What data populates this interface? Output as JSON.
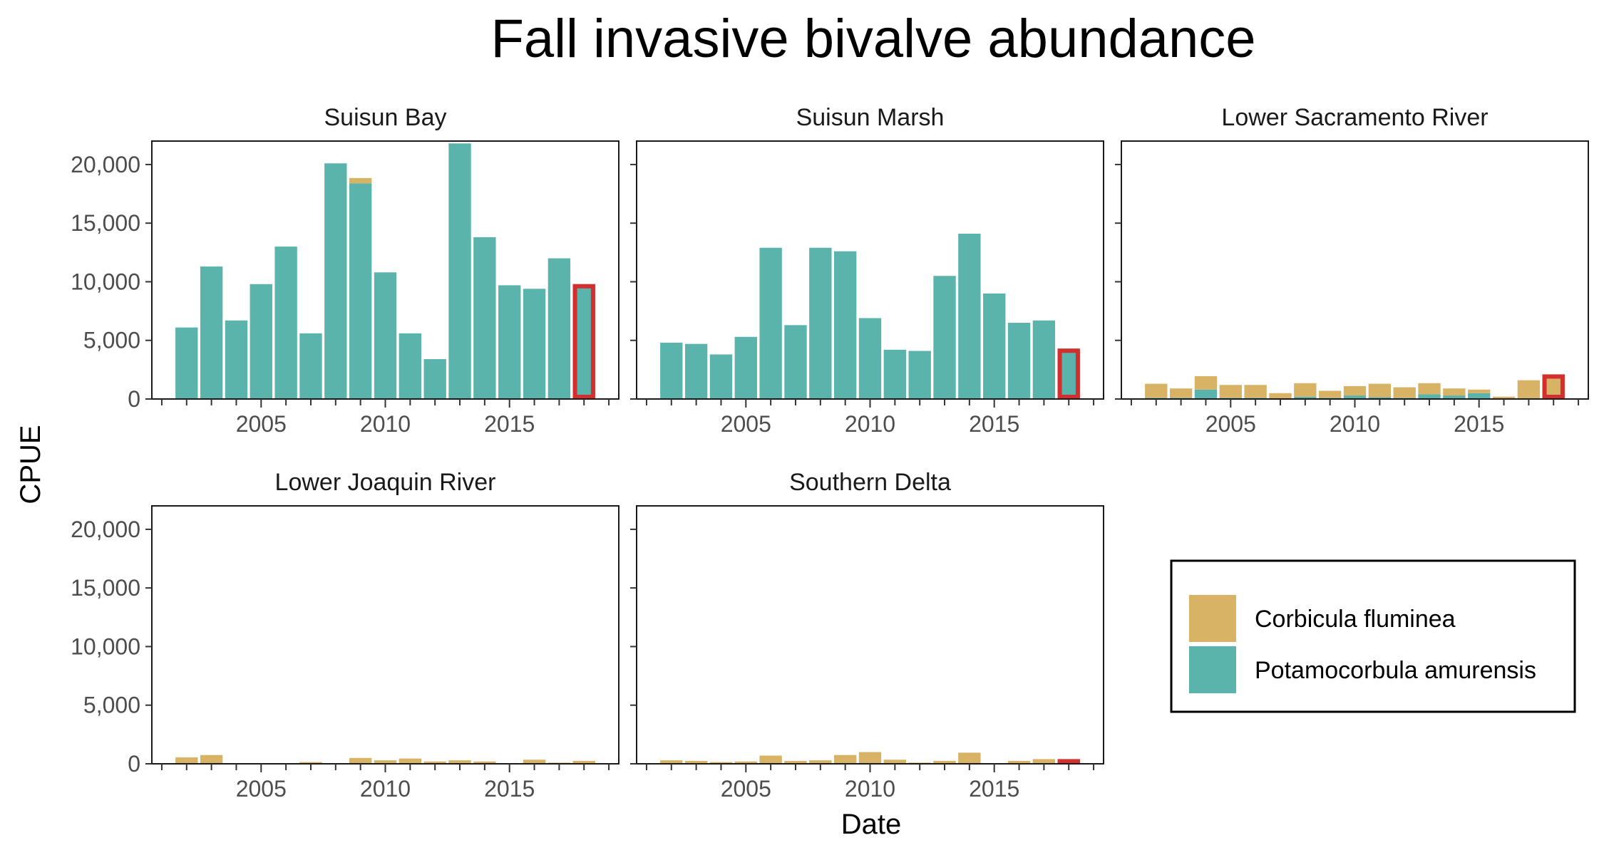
{
  "chart_data": {
    "type": "bar",
    "title": "Fall invasive bivalve abundance",
    "xlabel": "Date",
    "ylabel": "CPUE",
    "ylim": [
      0,
      22000
    ],
    "xlim": [
      2000.6,
      2019.4
    ],
    "yticks": [
      0,
      5000,
      10000,
      15000,
      20000
    ],
    "ytick_labels": [
      "0",
      "5,000",
      "10,000",
      "15,000",
      "20,000"
    ],
    "xticks": [
      2005,
      2010,
      2015
    ],
    "xtick_labels": [
      "2005",
      "2010",
      "2015"
    ],
    "legend": [
      {
        "name": "Corbicula fluminea",
        "color": "#D8B365"
      },
      {
        "name": "Potamocorbula amurensis",
        "color": "#5AB4AC"
      }
    ],
    "legend_position": "bottom-right",
    "highlight_year": 2018,
    "highlight_color": "#D32F2F",
    "years": [
      2002,
      2003,
      2004,
      2005,
      2006,
      2007,
      2008,
      2009,
      2010,
      2011,
      2012,
      2013,
      2014,
      2015,
      2016,
      2017,
      2018
    ],
    "panels": [
      {
        "name": "Suisun Bay",
        "series": [
          {
            "name": "Potamocorbula amurensis",
            "values": [
              6100,
              11300,
              6700,
              9800,
              13000,
              5600,
              20100,
              18400,
              10800,
              5600,
              3400,
              21800,
              13800,
              9700,
              9400,
              12000,
              9800
            ]
          },
          {
            "name": "Corbicula fluminea",
            "values": [
              0,
              0,
              0,
              0,
              0,
              0,
              0,
              450,
              0,
              0,
              0,
              0,
              0,
              0,
              0,
              0,
              0
            ]
          }
        ]
      },
      {
        "name": "Suisun Marsh",
        "series": [
          {
            "name": "Potamocorbula amurensis",
            "values": [
              4800,
              4700,
              3800,
              5300,
              12900,
              6300,
              12900,
              12600,
              6900,
              4200,
              4100,
              10500,
              14100,
              9000,
              6500,
              6700,
              4300
            ]
          },
          {
            "name": "Corbicula fluminea",
            "values": [
              0,
              0,
              0,
              0,
              0,
              0,
              0,
              0,
              0,
              0,
              0,
              0,
              0,
              0,
              0,
              0,
              0
            ]
          }
        ]
      },
      {
        "name": "Lower Sacramento River",
        "series": [
          {
            "name": "Potamocorbula amurensis",
            "values": [
              100,
              100,
              800,
              100,
              100,
              50,
              200,
              100,
              300,
              150,
              100,
              400,
              300,
              500,
              50,
              0,
              0
            ]
          },
          {
            "name": "Corbicula fluminea",
            "values": [
              1200,
              800,
              1150,
              1100,
              1100,
              450,
              1150,
              600,
              800,
              1150,
              900,
              950,
              600,
              300,
              150,
              1600,
              2100
            ]
          }
        ]
      },
      {
        "name": "Lower Joaquin River",
        "series": [
          {
            "name": "Potamocorbula amurensis",
            "values": [
              0,
              0,
              0,
              0,
              0,
              0,
              0,
              0,
              0,
              0,
              0,
              0,
              0,
              0,
              0,
              0,
              0
            ]
          },
          {
            "name": "Corbicula fluminea",
            "values": [
              550,
              750,
              0,
              0,
              0,
              150,
              0,
              500,
              300,
              450,
              200,
              300,
              200,
              0,
              350,
              100,
              250
            ]
          }
        ]
      },
      {
        "name": "Southern Delta",
        "series": [
          {
            "name": "Potamocorbula amurensis",
            "values": [
              0,
              0,
              0,
              0,
              0,
              0,
              0,
              0,
              0,
              0,
              0,
              0,
              0,
              0,
              0,
              0,
              0
            ]
          },
          {
            "name": "Corbicula fluminea",
            "values": [
              300,
              250,
              150,
              200,
              700,
              250,
              300,
              750,
              1000,
              350,
              100,
              250,
              950,
              0,
              250,
              400,
              400
            ]
          }
        ]
      }
    ]
  }
}
